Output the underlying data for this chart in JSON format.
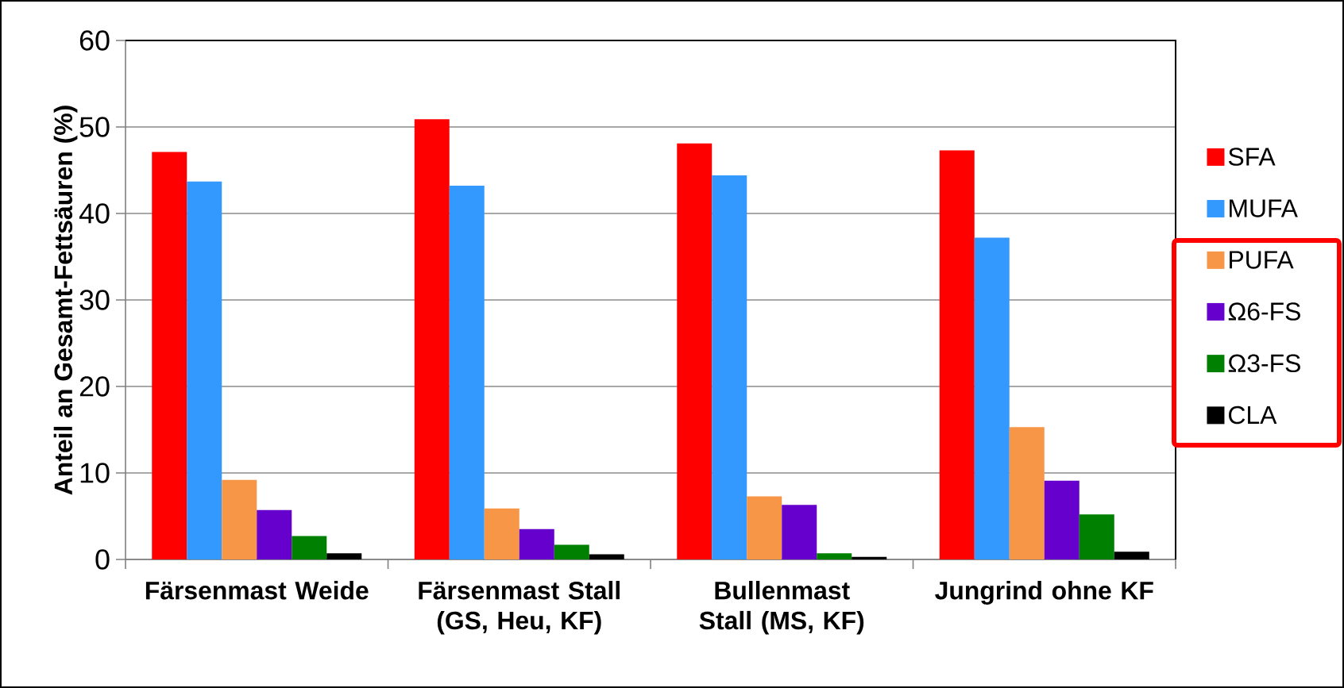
{
  "chart_data": {
    "type": "bar",
    "ylabel": "Anteil an Gesamt-Fettsäuren (%)",
    "categories": [
      "Färsenmast Weide",
      "Färsenmast Stall (GS, Heu, KF)",
      "Bullenmast Stall (MS, KF)",
      "Jungrind ohne KF"
    ],
    "series": [
      {
        "name": "SFA",
        "color": "#ff0000",
        "values": [
          47.1,
          50.9,
          48.1,
          47.3
        ]
      },
      {
        "name": "MUFA",
        "color": "#3399ff",
        "values": [
          43.7,
          43.2,
          44.4,
          37.2
        ]
      },
      {
        "name": "PUFA",
        "color": "#f79646",
        "values": [
          9.2,
          5.9,
          7.3,
          15.3
        ]
      },
      {
        "name": "Ω6-FS",
        "color": "#6600cc",
        "values": [
          5.7,
          3.5,
          6.3,
          9.1
        ]
      },
      {
        "name": "Ω3-FS",
        "color": "#008000",
        "values": [
          2.7,
          1.7,
          0.7,
          5.2
        ]
      },
      {
        "name": "CLA",
        "color": "#000000",
        "values": [
          0.7,
          0.6,
          0.3,
          0.9
        ]
      }
    ],
    "ylim": [
      0,
      60
    ],
    "yticks": [
      0,
      10,
      20,
      30,
      40,
      50,
      60
    ],
    "grid": "y",
    "legend": "right"
  }
}
